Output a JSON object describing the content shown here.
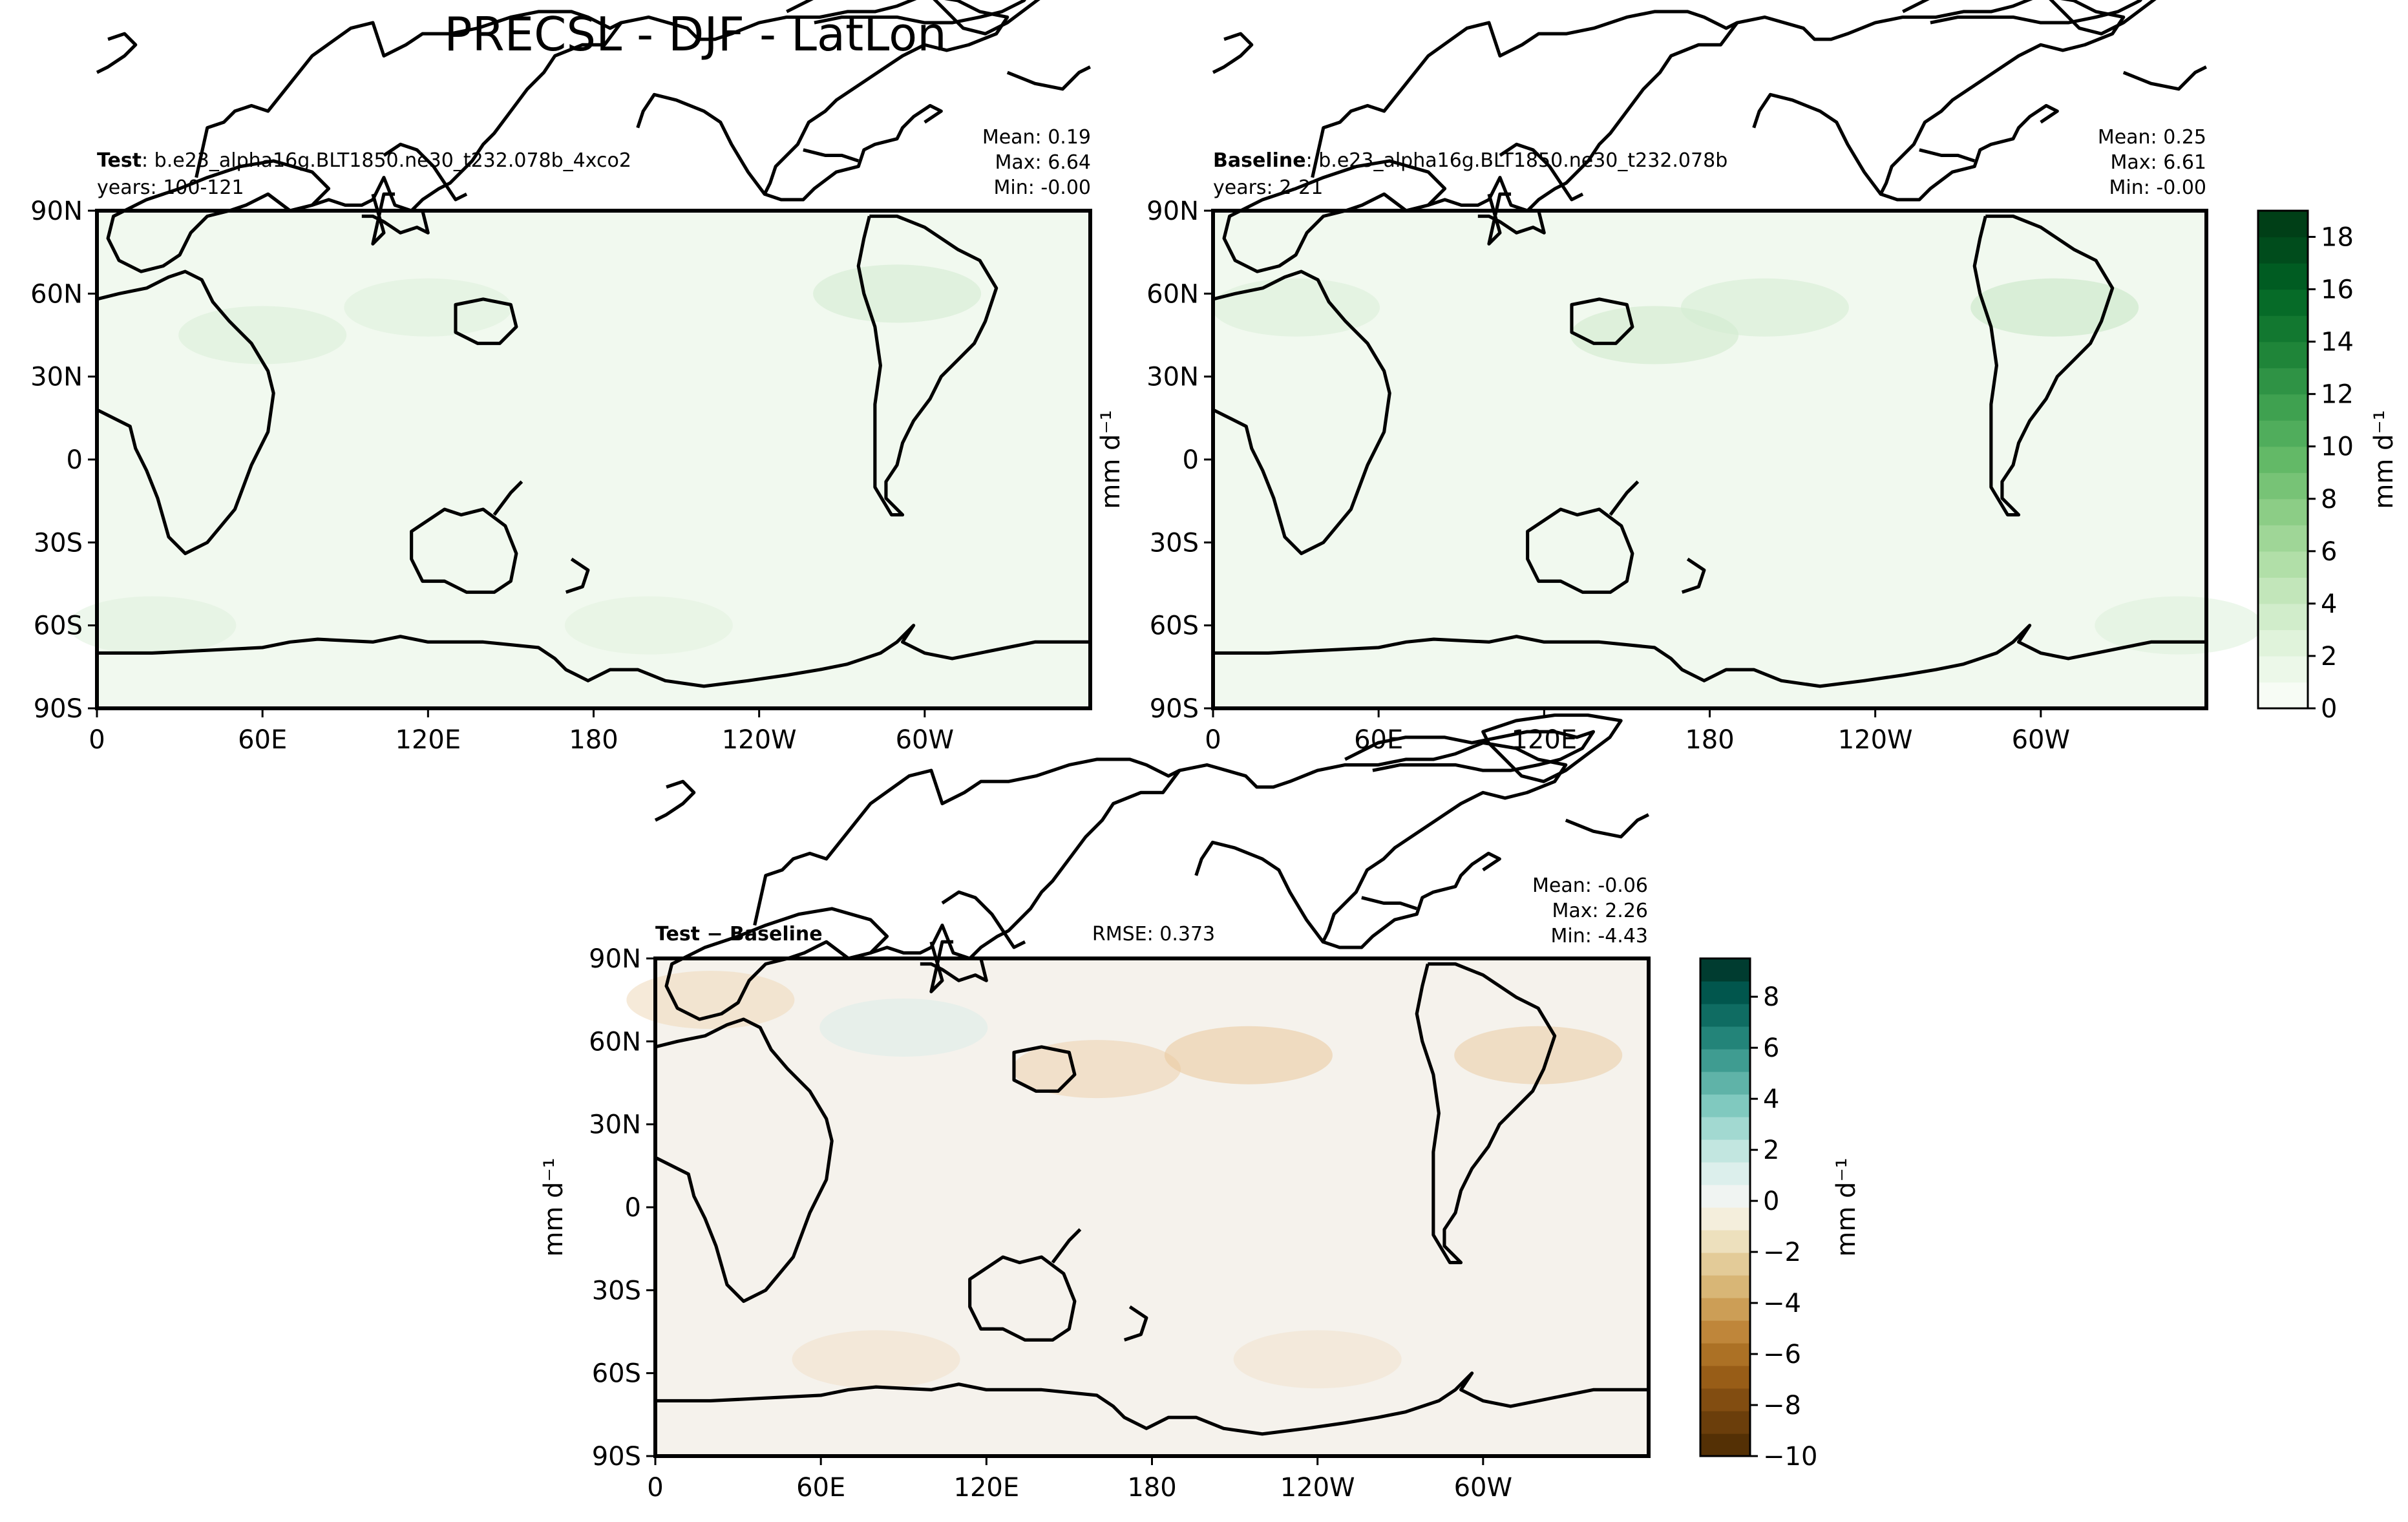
{
  "figure_title": "PRECSL - DJF - LatLon",
  "chart_data": [
    {
      "type": "heatmap",
      "panel": "test",
      "title_bold": "Test",
      "title_text": ": b.e23_alpha16g.BLT1850.ne30_t232.078b_4xco2",
      "subtitle": "years: 100-121",
      "stats": {
        "mean": "Mean:  0.19",
        "max": "Max:  6.64",
        "min": "Min: -0.00"
      },
      "x_ticks": [
        "0",
        "60E",
        "120E",
        "180",
        "120W",
        "60W"
      ],
      "y_ticks": [
        "90N",
        "60N",
        "30N",
        "0",
        "30S",
        "60S",
        "90S"
      ],
      "xlim": [
        0,
        360
      ],
      "ylim": [
        -90,
        90
      ],
      "units": "mm d⁻¹",
      "colormap": "greens",
      "base_color": "#f1f9ef",
      "features": [
        {
          "lon": 60,
          "lat": 45,
          "value": 1.2
        },
        {
          "lon": 120,
          "lat": 55,
          "value": 1.0
        },
        {
          "lon": 290,
          "lat": 60,
          "value": 1.6
        },
        {
          "lon": 20,
          "lat": -60,
          "value": 0.9
        },
        {
          "lon": 200,
          "lat": -60,
          "value": 0.8
        }
      ]
    },
    {
      "type": "heatmap",
      "panel": "baseline",
      "title_bold": "Baseline",
      "title_text": ": b.e23_alpha16g.BLT1850.ne30_t232.078b",
      "subtitle": "years: 2-21",
      "stats": {
        "mean": "Mean:  0.25",
        "max": "Max:  6.61",
        "min": "Min: -0.00"
      },
      "x_ticks": [
        "0",
        "60E",
        "120E",
        "180",
        "120W",
        "60W"
      ],
      "y_ticks": [
        "90N",
        "60N",
        "30N",
        "0",
        "30S",
        "60S",
        "90S"
      ],
      "xlim": [
        0,
        360
      ],
      "ylim": [
        -90,
        90
      ],
      "units": "mm d⁻¹",
      "colormap": "greens",
      "base_color": "#f1f9ef",
      "features": [
        {
          "lon": 160,
          "lat": 45,
          "value": 1.8
        },
        {
          "lon": 200,
          "lat": 55,
          "value": 1.5
        },
        {
          "lon": 305,
          "lat": 55,
          "value": 2.2
        },
        {
          "lon": 30,
          "lat": 55,
          "value": 1.2
        },
        {
          "lon": 350,
          "lat": -60,
          "value": 1.0
        }
      ]
    },
    {
      "type": "heatmap",
      "panel": "difference",
      "title_bold": "Test − Baseline",
      "rmse": "RMSE: 0.373",
      "stats": {
        "mean": "Mean: -0.06",
        "max": "Max:  2.26",
        "min": "Min: -4.43"
      },
      "x_ticks": [
        "0",
        "60E",
        "120E",
        "180",
        "120W",
        "60W"
      ],
      "y_ticks": [
        "90N",
        "60N",
        "30N",
        "0",
        "30S",
        "60S",
        "90S"
      ],
      "xlim": [
        0,
        360
      ],
      "ylim": [
        -90,
        90
      ],
      "units": "mm d⁻¹",
      "colormap": "brown-teal diverging",
      "base_color": "#f5f2ec",
      "features": [
        {
          "lon": 20,
          "lat": 75,
          "value": -1.2
        },
        {
          "lon": 160,
          "lat": 50,
          "value": -1.5
        },
        {
          "lon": 215,
          "lat": 55,
          "value": -2.0
        },
        {
          "lon": 320,
          "lat": 55,
          "value": -1.8
        },
        {
          "lon": 80,
          "lat": -55,
          "value": -0.8
        },
        {
          "lon": 240,
          "lat": -55,
          "value": -0.7
        },
        {
          "lon": 90,
          "lat": 65,
          "value": 0.6
        }
      ]
    }
  ],
  "colorbars": [
    {
      "panel": "test-baseline",
      "label": "mm d⁻¹",
      "ticks": [
        "0",
        "2",
        "4",
        "6",
        "8",
        "10",
        "12",
        "14",
        "16",
        "18"
      ],
      "range": [
        0,
        19
      ],
      "colors": [
        "#f7fcf5",
        "#ecf8e9",
        "#e0f3db",
        "#d1edcb",
        "#c2e6ba",
        "#b1dfa8",
        "#9fd697",
        "#8ccd86",
        "#77c376",
        "#63b967",
        "#50ad5c",
        "#3fa150",
        "#2f9345",
        "#1f8539",
        "#127830",
        "#066b28",
        "#005c22",
        "#004c1c",
        "#003f17"
      ]
    },
    {
      "panel": "difference",
      "label": "mm d⁻¹",
      "ticks": [
        "8",
        "6",
        "4",
        "2",
        "0",
        "−2",
        "−4",
        "−6",
        "−8",
        "−10"
      ],
      "range": [
        -10,
        9.5
      ],
      "colors": [
        "#543005",
        "#6b3e0b",
        "#824d11",
        "#985d17",
        "#ac7125",
        "#bf863a",
        "#cc9e56",
        "#d8b676",
        "#e3cb98",
        "#ede0bd",
        "#f4eedc",
        "#f0f4f2",
        "#dcefec",
        "#c2e6e0",
        "#a2d9d1",
        "#80c9bf",
        "#5fb3a8",
        "#3f9c91",
        "#238479",
        "#0f6c62",
        "#01564d",
        "#003c30"
      ]
    }
  ]
}
